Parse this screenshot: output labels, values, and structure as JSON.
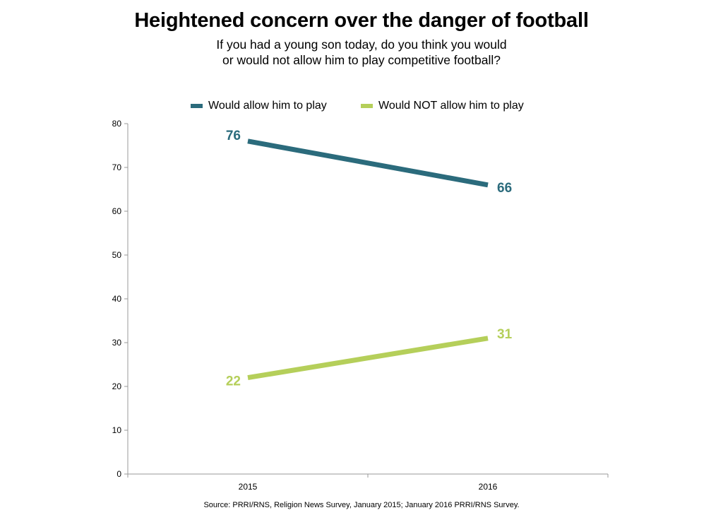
{
  "title": "Heightened concern over the danger of football",
  "subtitle": [
    "If you had a young son today, do you think you would",
    "or would not allow him to play competitive football?"
  ],
  "source": "Source: PRRI/RNS, Religion News Survey, January 2015; January 2016 PRRI/RNS Survey.",
  "colors": {
    "allow": "#2b6b7c",
    "not_allow": "#b5cf5a",
    "axis": "#999999"
  },
  "chart_data": {
    "type": "line",
    "title": "Heightened concern over the danger of football",
    "xlabel": "",
    "ylabel": "",
    "categories": [
      "2015",
      "2016"
    ],
    "yticks": [
      0,
      10,
      20,
      30,
      40,
      50,
      60,
      70,
      80
    ],
    "ylim": [
      0,
      80
    ],
    "grid": false,
    "legend_position": "top-center",
    "series": [
      {
        "name": "Would allow him to play",
        "values": [
          76,
          66
        ],
        "color_key": "allow"
      },
      {
        "name": "Would NOT allow him to play",
        "values": [
          22,
          31
        ],
        "color_key": "not_allow"
      }
    ]
  }
}
